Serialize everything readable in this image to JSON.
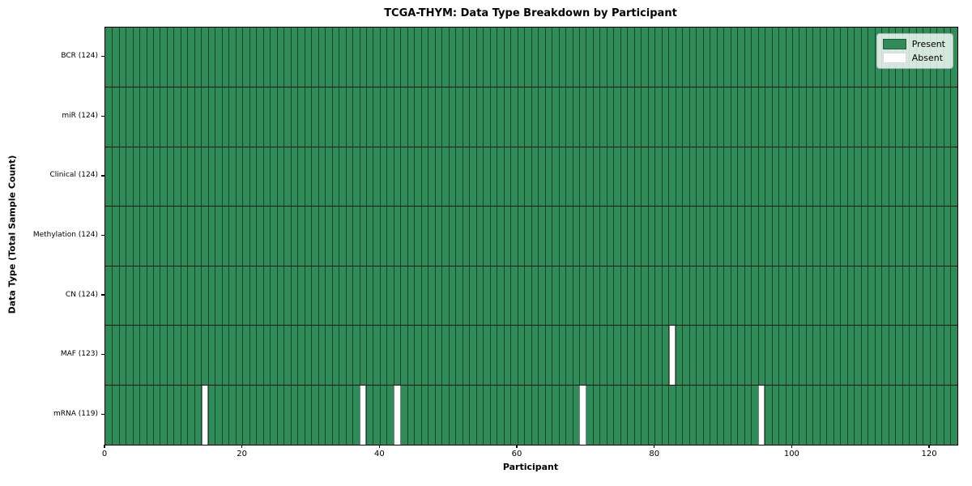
{
  "chart_data": {
    "type": "heatmap",
    "title": "TCGA-THYM: Data Type Breakdown by Participant",
    "xlabel": "Participant",
    "ylabel": "Data Type (Total Sample Count)",
    "n_participants": 124,
    "xlim": [
      0,
      124
    ],
    "x_ticks": [
      0,
      20,
      40,
      60,
      80,
      100,
      120
    ],
    "grid": true,
    "legend_position": "upper right",
    "legend": [
      {
        "label": "Present",
        "color": "#2f8b58"
      },
      {
        "label": "Absent",
        "color": "#ffffff"
      }
    ],
    "rows": [
      {
        "label": "BCR (124)",
        "total": 124,
        "absent_indices": []
      },
      {
        "label": "miR (124)",
        "total": 124,
        "absent_indices": []
      },
      {
        "label": "Clinical (124)",
        "total": 124,
        "absent_indices": []
      },
      {
        "label": "Methylation (124)",
        "total": 124,
        "absent_indices": []
      },
      {
        "label": "CN (124)",
        "total": 124,
        "absent_indices": []
      },
      {
        "label": "MAF (123)",
        "total": 123,
        "absent_indices": [
          82
        ]
      },
      {
        "label": "mRNA (119)",
        "total": 119,
        "absent_indices": [
          14,
          37,
          42,
          69,
          95
        ]
      }
    ],
    "colors": {
      "present": "#2f8b58",
      "absent": "#ffffff",
      "cell_edge": "rgba(0,0,0,0.5)",
      "row_separator": "#111111",
      "plot_border": "#000000"
    },
    "icons": {
      "present_swatch": "legend-present-swatch",
      "absent_swatch": "legend-absent-swatch"
    }
  }
}
